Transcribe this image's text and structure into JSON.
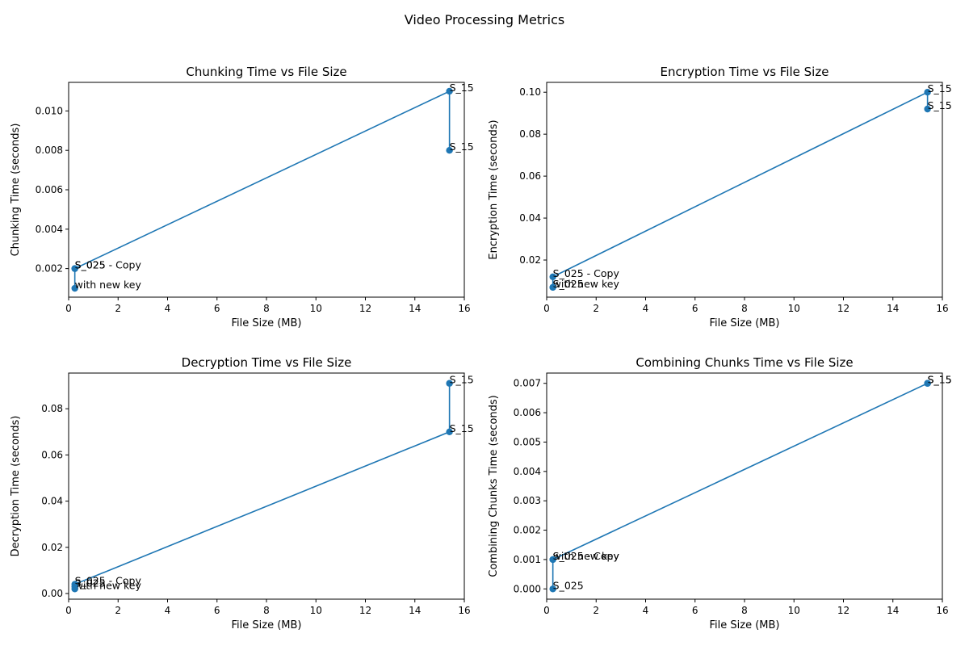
{
  "figure": {
    "title": "Video Processing Metrics"
  },
  "chart_data": [
    {
      "type": "line",
      "title": "Chunking Time vs File Size",
      "xlabel": "File Size (MB)",
      "ylabel": "Chunking Time (seconds)",
      "xlim": [
        0,
        16
      ],
      "ylim": [
        0.00055,
        0.01145
      ],
      "xticks": [
        "0",
        "2",
        "4",
        "6",
        "8",
        "10",
        "12",
        "14",
        "16"
      ],
      "yticks": [
        "0.002",
        "0.004",
        "0.006",
        "0.008",
        "0.010"
      ],
      "color": "#1f77b4",
      "points": [
        {
          "x": 0.25,
          "y": 0.001,
          "label": "with new key"
        },
        {
          "x": 0.25,
          "y": 0.002,
          "label": "S_025"
        },
        {
          "x": 0.25,
          "y": 0.002,
          "label": "S_025 - Copy"
        },
        {
          "x": 15.4,
          "y": 0.011,
          "label": "S_15"
        },
        {
          "x": 15.4,
          "y": 0.008,
          "label": "S_15"
        }
      ]
    },
    {
      "type": "line",
      "title": "Encryption Time vs File Size",
      "xlabel": "File Size (MB)",
      "ylabel": "Encryption Time (seconds)",
      "xlim": [
        0,
        16
      ],
      "ylim": [
        0.0023,
        0.1047
      ],
      "xticks": [
        "0",
        "2",
        "4",
        "6",
        "8",
        "10",
        "12",
        "14",
        "16"
      ],
      "yticks": [
        "0.02",
        "0.04",
        "0.06",
        "0.08",
        "0.10"
      ],
      "color": "#1f77b4",
      "points": [
        {
          "x": 0.25,
          "y": 0.007,
          "label": "with new key"
        },
        {
          "x": 0.25,
          "y": 0.007,
          "label": "S_025"
        },
        {
          "x": 0.25,
          "y": 0.012,
          "label": "S_025 - Copy"
        },
        {
          "x": 15.4,
          "y": 0.1,
          "label": "S_15"
        },
        {
          "x": 15.4,
          "y": 0.092,
          "label": "S_15"
        }
      ]
    },
    {
      "type": "line",
      "title": "Decryption Time vs File Size",
      "xlabel": "File Size (MB)",
      "ylabel": "Decryption Time (seconds)",
      "xlim": [
        0,
        16
      ],
      "ylim": [
        -0.00245,
        0.09545
      ],
      "xticks": [
        "0",
        "2",
        "4",
        "6",
        "8",
        "10",
        "12",
        "14",
        "16"
      ],
      "yticks": [
        "0.00",
        "0.02",
        "0.04",
        "0.06",
        "0.08"
      ],
      "color": "#1f77b4",
      "points": [
        {
          "x": 0.25,
          "y": 0.002,
          "label": "with new key"
        },
        {
          "x": 0.25,
          "y": 0.003,
          "label": "S_025"
        },
        {
          "x": 0.25,
          "y": 0.004,
          "label": "S_025 - Copy"
        },
        {
          "x": 15.4,
          "y": 0.07,
          "label": "S_15"
        },
        {
          "x": 15.4,
          "y": 0.091,
          "label": "S_15"
        }
      ]
    },
    {
      "type": "line",
      "title": "Combining Chunks Time vs File Size",
      "xlabel": "File Size (MB)",
      "ylabel": "Combining Chunks Time (seconds)",
      "xlim": [
        0,
        16
      ],
      "ylim": [
        -0.00035,
        0.00735
      ],
      "xticks": [
        "0",
        "2",
        "4",
        "6",
        "8",
        "10",
        "12",
        "14",
        "16"
      ],
      "yticks": [
        "0.000",
        "0.001",
        "0.002",
        "0.003",
        "0.004",
        "0.005",
        "0.006",
        "0.007"
      ],
      "color": "#1f77b4",
      "points": [
        {
          "x": 0.25,
          "y": 0.001,
          "label": "with new key"
        },
        {
          "x": 0.25,
          "y": 0.0,
          "label": "S_025"
        },
        {
          "x": 0.25,
          "y": 0.001,
          "label": "S_025 - Copy"
        },
        {
          "x": 15.4,
          "y": 0.007,
          "label": "S_15"
        },
        {
          "x": 15.4,
          "y": 0.007,
          "label": "S_15"
        }
      ]
    }
  ]
}
